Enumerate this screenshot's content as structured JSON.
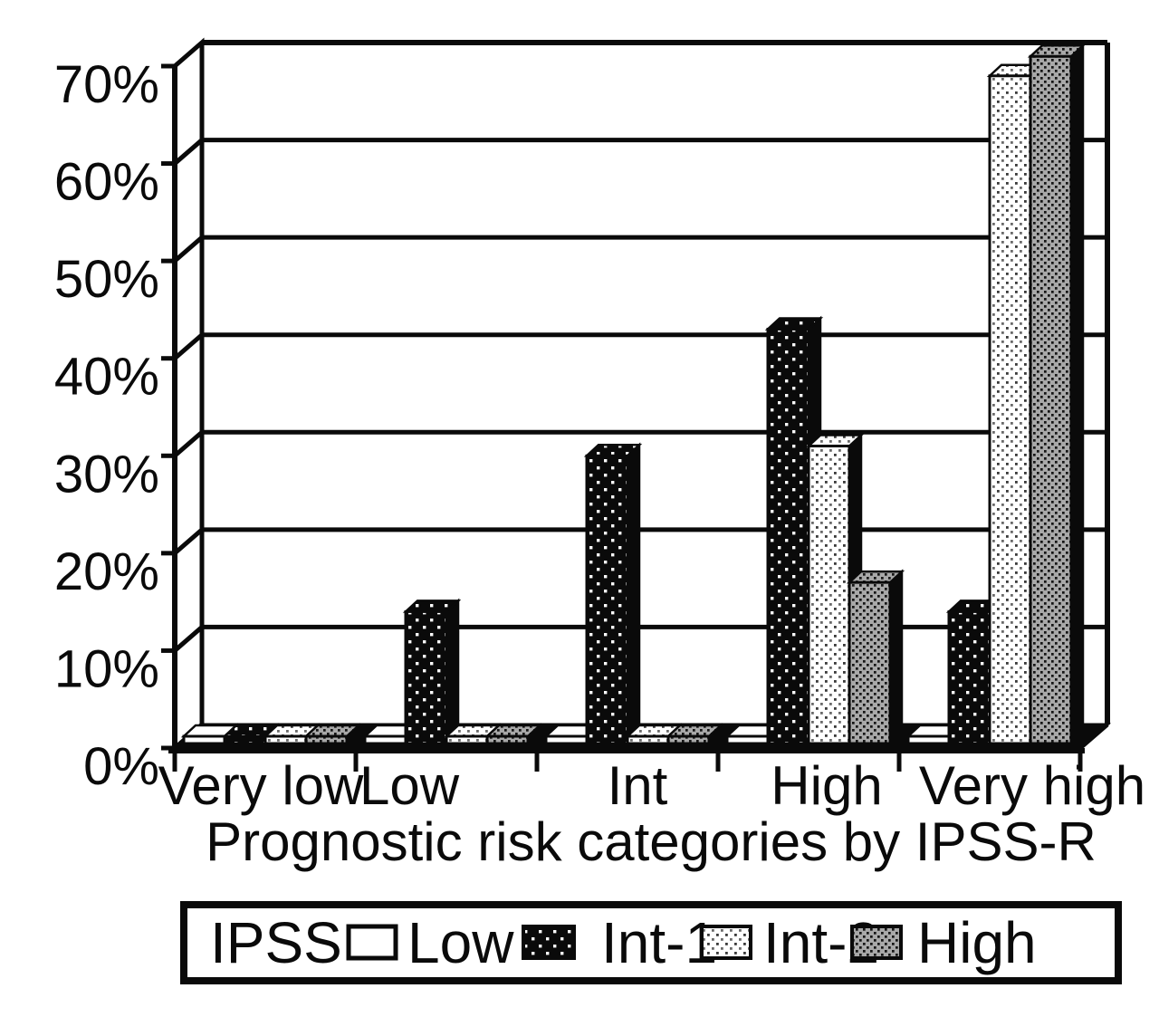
{
  "chart_data": {
    "type": "bar",
    "style": "3d-clustered-column-monochrome",
    "title": "",
    "xlabel": "Prognostic risk categories by IPSS-R",
    "ylabel": "",
    "categories": [
      "Very low",
      "Low",
      "Int",
      "High",
      "Very high"
    ],
    "series": [
      {
        "name": "Low",
        "pattern": "white-solid",
        "values": [
          0,
          0,
          0,
          0,
          0
        ]
      },
      {
        "name": "Int-1",
        "pattern": "black-white-dots",
        "values": [
          0,
          14,
          30,
          43,
          14
        ]
      },
      {
        "name": "Int-2",
        "pattern": "light-stipple",
        "values": [
          0,
          0,
          0,
          31,
          69
        ]
      },
      {
        "name": "High",
        "pattern": "gray-dark-weave",
        "values": [
          0,
          0,
          0,
          17,
          71
        ]
      }
    ],
    "ylim": [
      0,
      70
    ],
    "ytick_step": 10,
    "ytick_labels": [
      "0%",
      "10%",
      "20%",
      "30%",
      "40%",
      "50%",
      "60%",
      "70%"
    ],
    "legend_title": "IPSS",
    "legend_position": "bottom",
    "grid": "horizontal-back-wall",
    "colors": {
      "foreground": "#0a0a0a",
      "background": "#ffffff",
      "gray_bar": "#a8a8a8"
    }
  }
}
